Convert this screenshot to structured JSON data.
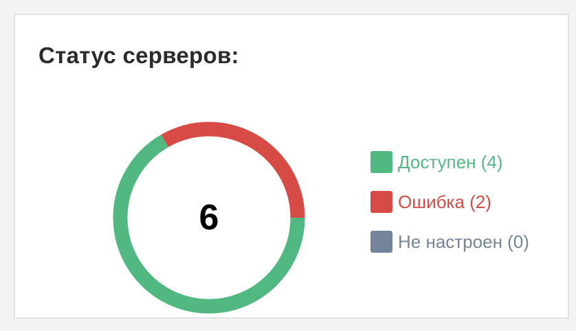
{
  "widget": {
    "title": "Статус серверов:"
  },
  "chart_data": {
    "type": "pie",
    "variant": "donut",
    "total": 6,
    "total_label": "6",
    "series": [
      {
        "name": "Доступен",
        "value": 4,
        "label": "Доступен (4)",
        "color": "#52b882"
      },
      {
        "name": "Ошибка",
        "value": 2,
        "label": "Ошибка (2)",
        "color": "#d64b45"
      },
      {
        "name": "Не настроен",
        "value": 0,
        "label": "Не настроен (0)",
        "color": "#74849a"
      }
    ],
    "legend_position": "right"
  }
}
